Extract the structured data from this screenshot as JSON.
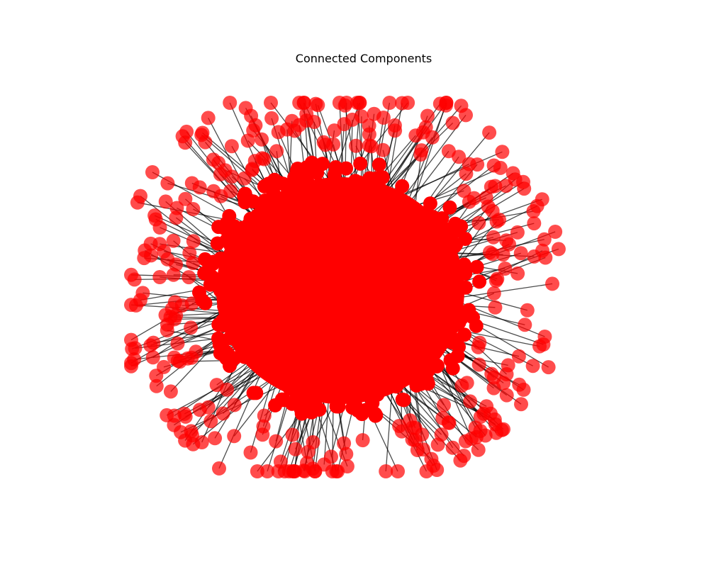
{
  "figure": {
    "title": "Connected Components"
  },
  "graph": {
    "layout": "spring",
    "node_color": "#ff0000",
    "node_alpha": 0.7,
    "edge_color": "#000000",
    "edge_alpha": 0.7,
    "axes_visible": false,
    "component_count": 1,
    "outer_nodes": "many red nodes surrounding a dense red core, each connected by a dark edge"
  }
}
